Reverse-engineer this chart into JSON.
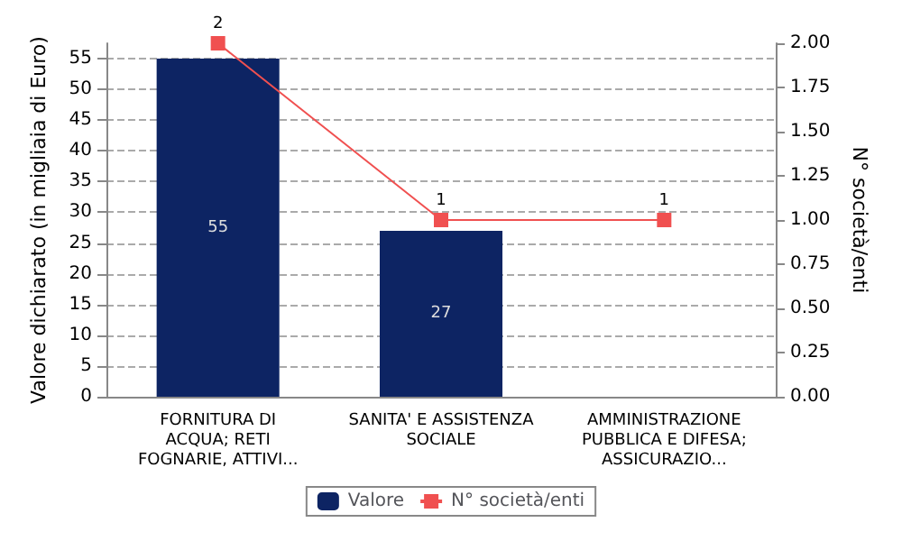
{
  "chart_data": {
    "type": "bar",
    "categories": [
      "FORNITURA DI\nACQUA; RETI\nFOGNARIE, ATTIVI...",
      "SANITA' E ASSISTENZA\nSOCIALE",
      "AMMINISTRAZIONE\nPUBBLICA E DIFESA;\nASSICURAZIO..."
    ],
    "series": [
      {
        "name": "Valore",
        "color": "#0d2463",
        "values": [
          55,
          27,
          0
        ],
        "value_labels": [
          "55",
          "27",
          null
        ]
      },
      {
        "name": "N° società/enti",
        "type": "line",
        "axis": "y2",
        "color": "#f05050",
        "values": [
          2,
          1,
          1
        ],
        "value_labels": [
          "2",
          "1",
          "1"
        ]
      }
    ],
    "ylabel": "Valore dichiarato (in migliaia di Euro)",
    "y2label": "N° società/enti",
    "ylim": [
      0,
      57.5
    ],
    "yticks": [
      0,
      5,
      10,
      15,
      20,
      25,
      30,
      35,
      40,
      45,
      50,
      55
    ],
    "y2lim": [
      0,
      2
    ],
    "y2ticks": [
      {
        "value": 0,
        "label": "0.00"
      },
      {
        "value": 0.25,
        "label": "0.25"
      },
      {
        "value": 0.5,
        "label": "0.50"
      },
      {
        "value": 0.75,
        "label": "0.75"
      },
      {
        "value": 1,
        "label": "1.00"
      },
      {
        "value": 1.25,
        "label": "1.25"
      },
      {
        "value": 1.5,
        "label": "1.50"
      },
      {
        "value": 1.75,
        "label": "1.75"
      },
      {
        "value": 2,
        "label": "2.00"
      }
    ],
    "grid": "y",
    "legend": "bottom",
    "marker": "square"
  }
}
